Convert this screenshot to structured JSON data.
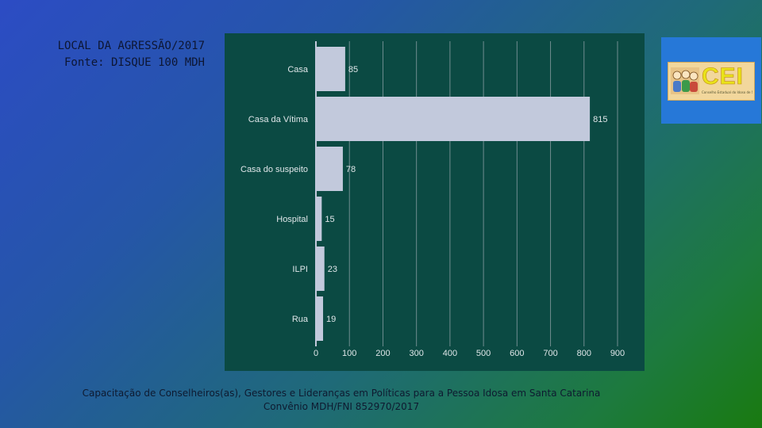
{
  "header": {
    "title": "LOCAL DA AGRESSÃO/2017",
    "source": "Fonte: DISQUE 100 MDH"
  },
  "logo": {
    "text": "CEI",
    "subtitle": "Conselho Estadual do Idoso de Santa Catarina"
  },
  "footer": {
    "line1": "Capacitação de Conselheiros(as), Gestores e Lideranças em Políticas para a Pessoa Idosa em Santa Catarina",
    "line2": "Convênio MDH/FNI 852970/2017"
  },
  "colors": {
    "panel": "#0b4a43",
    "bar": "#c2c9dc",
    "text": "#dfe6e9",
    "grid": "#9aa8b0"
  },
  "chart_data": {
    "type": "bar",
    "orientation": "horizontal",
    "categories": [
      "Casa",
      "Casa da Vítima",
      "Casa do suspeito",
      "Hospital",
      "ILPI",
      "Rua"
    ],
    "values": [
      85,
      815,
      78,
      15,
      23,
      19
    ],
    "xticks": [
      0,
      100,
      200,
      300,
      400,
      500,
      600,
      700,
      800,
      900
    ],
    "xlim": [
      0,
      900
    ],
    "title": "",
    "xlabel": "",
    "ylabel": "",
    "grid": true
  }
}
